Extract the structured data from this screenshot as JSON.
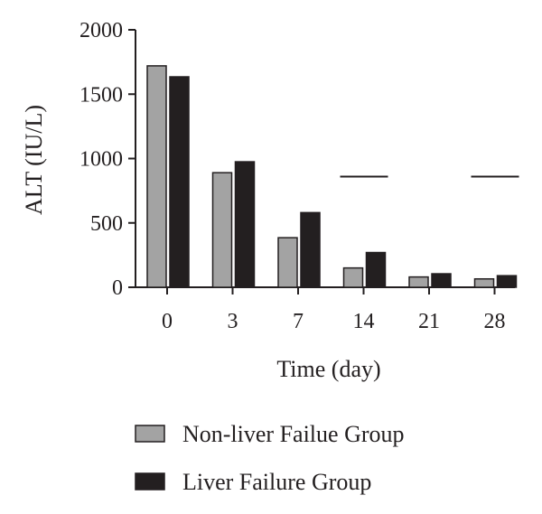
{
  "chart_data": {
    "type": "bar",
    "xlabel": "Time (day)",
    "ylabel": "ALT (IU/L)",
    "categories": [
      "0",
      "3",
      "7",
      "14",
      "21",
      "28"
    ],
    "ylim": [
      0,
      2000
    ],
    "yticks": [
      "0",
      "500",
      "1000",
      "1500",
      "2000"
    ],
    "series": [
      {
        "name": "Non-liver Failue Group",
        "color": "#a3a3a3",
        "values": [
          1720,
          890,
          385,
          150,
          80,
          65
        ]
      },
      {
        "name": "Liver Failure Group",
        "color": "#231f20",
        "values": [
          1635,
          975,
          580,
          270,
          105,
          90
        ]
      }
    ],
    "annotations": [
      {
        "type": "significance-line",
        "category": "14",
        "y": 860
      },
      {
        "type": "significance-line",
        "category": "28",
        "y": 860
      }
    ],
    "legend_position": "bottom",
    "grid": false
  }
}
